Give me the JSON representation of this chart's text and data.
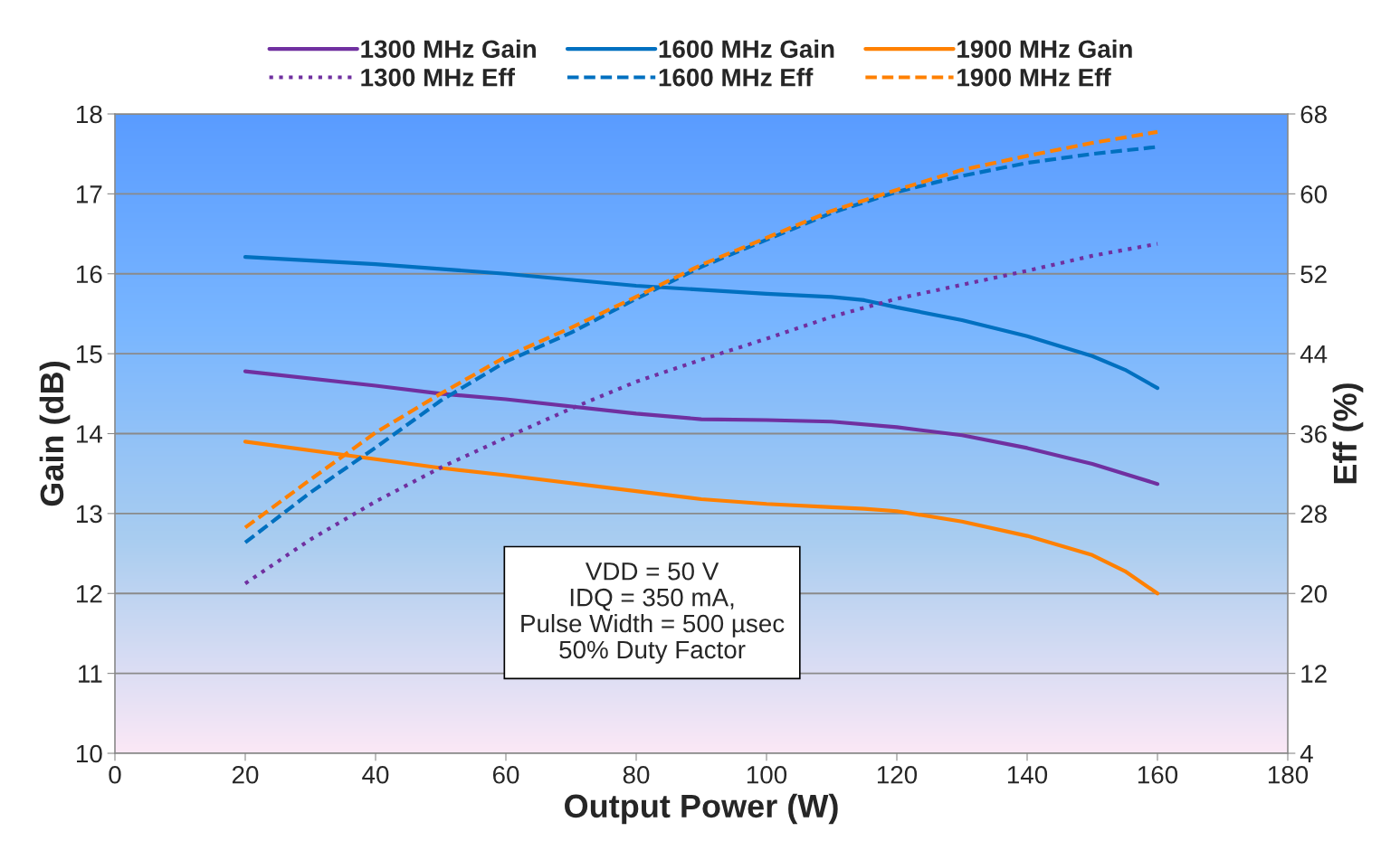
{
  "chart_data": {
    "type": "line",
    "xlabel": "Output Power (W)",
    "ylabel": "Gain (dB)",
    "y2label": "Eff (%)",
    "xlim": [
      0,
      180
    ],
    "xticks": [
      0,
      20,
      40,
      60,
      80,
      100,
      120,
      140,
      160,
      180
    ],
    "ylim": [
      10,
      18
    ],
    "yticks": [
      10,
      11,
      12,
      13,
      14,
      15,
      16,
      17,
      18
    ],
    "y2lim": [
      4,
      68
    ],
    "y2ticks": [
      4,
      12,
      20,
      28,
      36,
      44,
      52,
      60,
      68
    ],
    "grid": "y",
    "legend": "top",
    "marker": "none",
    "annotations": [
      "VDD = 50 V\nIDQ = 350 mA,\nPulse Width = 500 µsec\n50% Duty Factor"
    ],
    "series": [
      {
        "name": "1300 MHz Gain",
        "color": "#7030a0",
        "line_style": "solid",
        "x": [
          20,
          40,
          50,
          60,
          80,
          90,
          100,
          110,
          120,
          130,
          140,
          150,
          160
        ],
        "values": [
          14.78,
          14.6,
          14.5,
          14.43,
          14.25,
          14.18,
          14.17,
          14.15,
          14.08,
          13.98,
          13.82,
          13.62,
          13.37
        ]
      },
      {
        "name": "1300 MHz Eff",
        "color": "#7030a0",
        "line_style": "dotted",
        "axis": "y2",
        "x": [
          20,
          30,
          40,
          50,
          60,
          70,
          80,
          90,
          100,
          110,
          120,
          130,
          140,
          150,
          160
        ],
        "values": [
          21,
          25.4,
          29.2,
          32.6,
          35.6,
          38.5,
          41.2,
          43.4,
          45.5,
          47.7,
          49.5,
          50.9,
          52.3,
          53.8,
          55
        ]
      },
      {
        "name": "1600 MHz Gain",
        "color": "#0070c0",
        "line_style": "solid",
        "x": [
          20,
          40,
          60,
          80,
          100,
          110,
          115,
          120,
          130,
          140,
          150,
          155,
          160
        ],
        "values": [
          16.21,
          16.12,
          16.0,
          15.85,
          15.75,
          15.71,
          15.67,
          15.58,
          15.42,
          15.22,
          14.97,
          14.8,
          14.57
        ]
      },
      {
        "name": "1600 MHz Eff",
        "color": "#0070c0",
        "line_style": "dashed",
        "axis": "y2",
        "x": [
          20,
          30,
          40,
          50,
          60,
          70,
          80,
          90,
          100,
          110,
          120,
          130,
          140,
          150,
          160
        ],
        "values": [
          25.1,
          30.1,
          34.6,
          39.3,
          43.2,
          46.1,
          49.5,
          52.7,
          55.4,
          58.1,
          60.2,
          61.8,
          63.1,
          64.0,
          64.7
        ]
      },
      {
        "name": "1900 MHz Gain",
        "color": "#ff8000",
        "line_style": "solid",
        "x": [
          20,
          40,
          50,
          60,
          80,
          90,
          100,
          110,
          115,
          120,
          130,
          140,
          150,
          155,
          160
        ],
        "values": [
          13.9,
          13.68,
          13.57,
          13.48,
          13.28,
          13.18,
          13.12,
          13.08,
          13.06,
          13.03,
          12.9,
          12.72,
          12.48,
          12.28,
          12.0
        ]
      },
      {
        "name": "1900 MHz Eff",
        "color": "#ff8000",
        "line_style": "dashed",
        "axis": "y2",
        "x": [
          20,
          30,
          40,
          50,
          60,
          70,
          80,
          90,
          100,
          110,
          120,
          130,
          140,
          150,
          160
        ],
        "values": [
          26.6,
          31.4,
          36.1,
          40.0,
          43.7,
          46.6,
          49.7,
          52.9,
          55.6,
          58.3,
          60.4,
          62.4,
          63.8,
          65.1,
          66.2
        ]
      }
    ]
  }
}
